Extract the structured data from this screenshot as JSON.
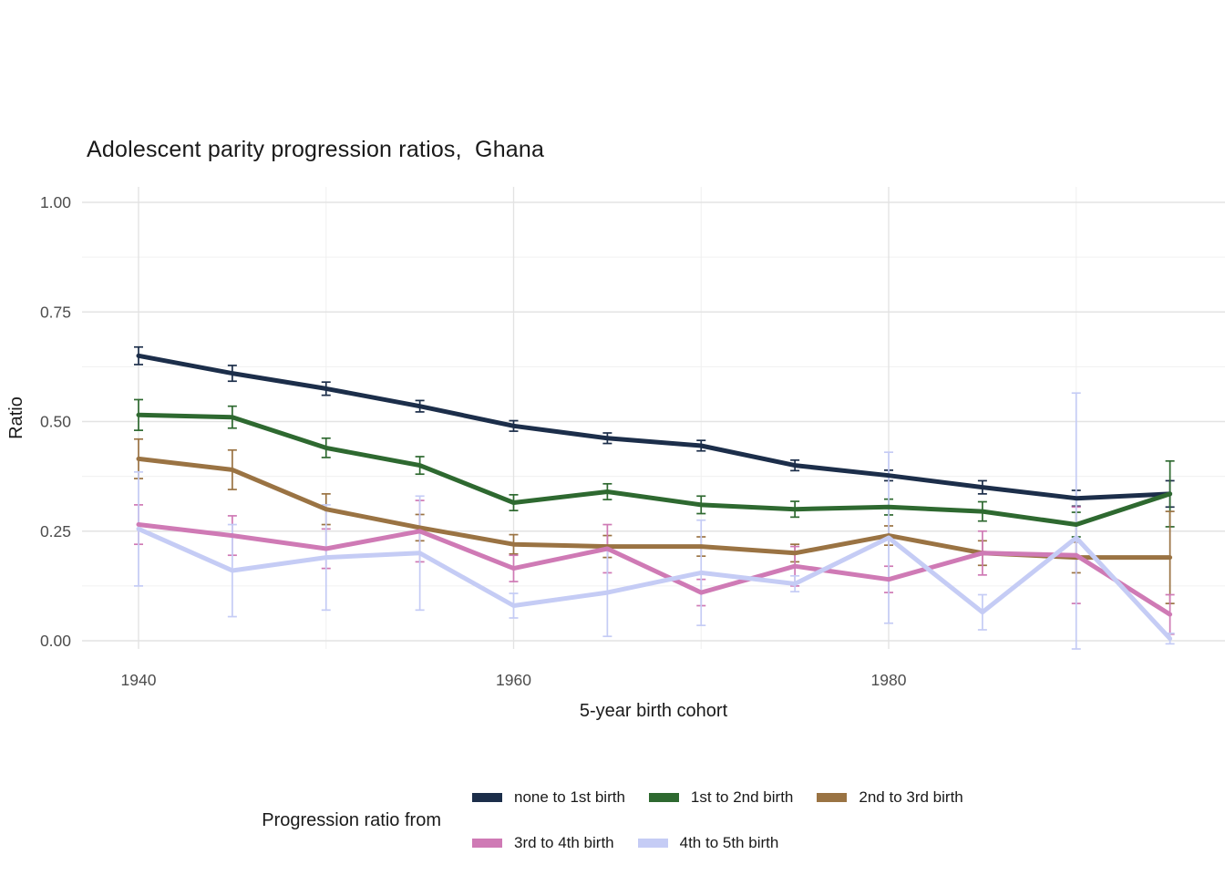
{
  "title": "Adolescent parity progression ratios,  Ghana",
  "chart_data": {
    "type": "line",
    "title": "Adolescent parity progression ratios,  Ghana",
    "xlabel": "5-year birth cohort",
    "ylabel": "Ratio",
    "ylim": [
      0,
      1
    ],
    "xlim": [
      1937,
      1998
    ],
    "grid": "major+minor",
    "legend_position": "bottom",
    "legend_title": "Progression ratio from",
    "x": [
      1940,
      1945,
      1950,
      1955,
      1960,
      1965,
      1970,
      1975,
      1980,
      1985,
      1990,
      1995
    ],
    "xticks": [
      1940,
      1960,
      1980
    ],
    "xtick_labels": [
      "1940",
      "1960",
      "1980"
    ],
    "x_minor": [
      1950,
      1970,
      1990
    ],
    "yticks": [
      0,
      0.25,
      0.5,
      0.75,
      1.0
    ],
    "ytick_labels": [
      "0.00",
      "0.25",
      "0.50",
      "0.75",
      "1.00"
    ],
    "y_minor": [
      0.125,
      0.375,
      0.625,
      0.875
    ],
    "error_bars": true,
    "series": [
      {
        "name": "none to 1st birth",
        "color": "#1c2e4a",
        "values": [
          0.65,
          0.61,
          0.575,
          0.535,
          0.49,
          0.462,
          0.445,
          0.4,
          0.377,
          0.35,
          0.325,
          0.335
        ],
        "errors": [
          0.02,
          0.018,
          0.015,
          0.013,
          0.012,
          0.012,
          0.012,
          0.012,
          0.012,
          0.015,
          0.018,
          0.03
        ]
      },
      {
        "name": "1st to 2nd birth",
        "color": "#2e6930",
        "values": [
          0.515,
          0.51,
          0.44,
          0.4,
          0.315,
          0.34,
          0.31,
          0.3,
          0.305,
          0.295,
          0.265,
          0.335
        ],
        "errors": [
          0.035,
          0.025,
          0.022,
          0.02,
          0.018,
          0.018,
          0.02,
          0.018,
          0.018,
          0.022,
          0.028,
          0.075
        ]
      },
      {
        "name": "2nd to 3rd birth",
        "color": "#9a7343",
        "values": [
          0.415,
          0.39,
          0.3,
          0.258,
          0.22,
          0.215,
          0.215,
          0.2,
          0.24,
          0.2,
          0.19,
          0.19
        ],
        "errors": [
          0.045,
          0.045,
          0.035,
          0.03,
          0.022,
          0.025,
          0.022,
          0.02,
          0.022,
          0.028,
          0.035,
          0.105
        ]
      },
      {
        "name": "3rd to 4th birth",
        "color": "#cf7ab5",
        "values": [
          0.265,
          0.24,
          0.21,
          0.25,
          0.165,
          0.21,
          0.11,
          0.17,
          0.14,
          0.2,
          0.195,
          0.06
        ],
        "errors": [
          0.045,
          0.045,
          0.045,
          0.07,
          0.03,
          0.055,
          0.03,
          0.045,
          0.03,
          0.05,
          0.11,
          0.045
        ]
      },
      {
        "name": "4th to 5th birth",
        "color": "#c5ccf5",
        "values": [
          0.255,
          0.16,
          0.19,
          0.2,
          0.08,
          0.11,
          0.155,
          0.13,
          0.235,
          0.065,
          0.235,
          0.005
        ],
        "errors": [
          0.13,
          0.105,
          0.12,
          0.13,
          0.028,
          0.1,
          0.12,
          0.018,
          0.195,
          0.04,
          0.33,
          0.012
        ]
      }
    ],
    "legend_rows": [
      [
        0,
        1,
        2
      ],
      [
        3,
        4
      ]
    ],
    "colors": {
      "background": "#ffffff",
      "grid_major": "#e3e3e3",
      "grid_minor": "#f0f0f0",
      "tick_text": "#4d4d4d",
      "axis_text": "#1a1a1a"
    }
  }
}
